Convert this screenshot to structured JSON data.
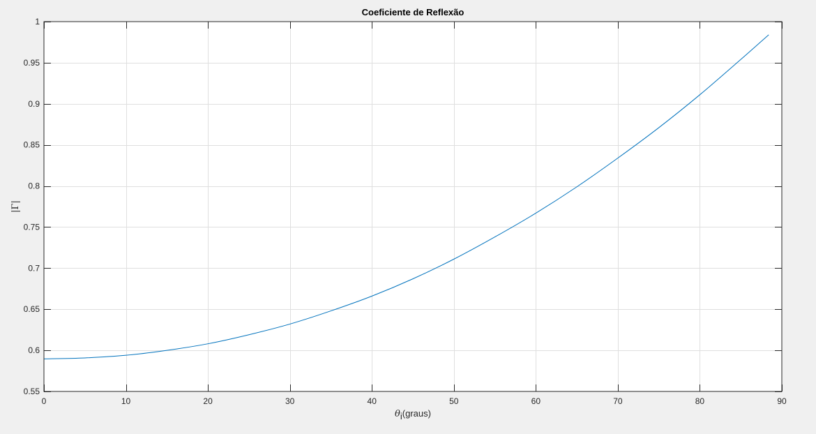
{
  "colors": {
    "figure_background": "#f0f0f0",
    "axes_background": "#ffffff",
    "grid": "#dfdfdf",
    "axis_line": "#262626",
    "series_line": "#0072bd"
  },
  "chart_data": {
    "type": "line",
    "title": "Coeficiente de Reflexão",
    "xlabel_symbol": "θ",
    "xlabel_subscript": "i",
    "xlabel_rest": "(graus)",
    "ylabel": "|Γ|",
    "xlim": [
      0,
      90
    ],
    "ylim": [
      0.55,
      1
    ],
    "grid": true,
    "x_ticks": [
      0,
      10,
      20,
      30,
      40,
      50,
      60,
      70,
      80,
      90
    ],
    "x_tick_labels": [
      "0",
      "10",
      "20",
      "30",
      "40",
      "50",
      "60",
      "70",
      "80",
      "90"
    ],
    "y_ticks": [
      0.55,
      0.6,
      0.65,
      0.7,
      0.75,
      0.8,
      0.85,
      0.9,
      0.95,
      1
    ],
    "y_tick_labels": [
      "0.55",
      "0.6",
      "0.65",
      "0.7",
      "0.75",
      "0.8",
      "0.85",
      "0.9",
      "0.95",
      "1"
    ],
    "series": [
      {
        "color": "#0072bd",
        "x": [
          0,
          5,
          10,
          15,
          20,
          25,
          30,
          35,
          40,
          45,
          50,
          55,
          60,
          65,
          70,
          75,
          80,
          85,
          88.4
        ],
        "y": [
          0.5896,
          0.5908,
          0.594,
          0.6,
          0.608,
          0.619,
          0.632,
          0.648,
          0.666,
          0.687,
          0.711,
          0.738,
          0.767,
          0.799,
          0.834,
          0.871,
          0.911,
          0.954,
          0.984
        ]
      }
    ]
  }
}
